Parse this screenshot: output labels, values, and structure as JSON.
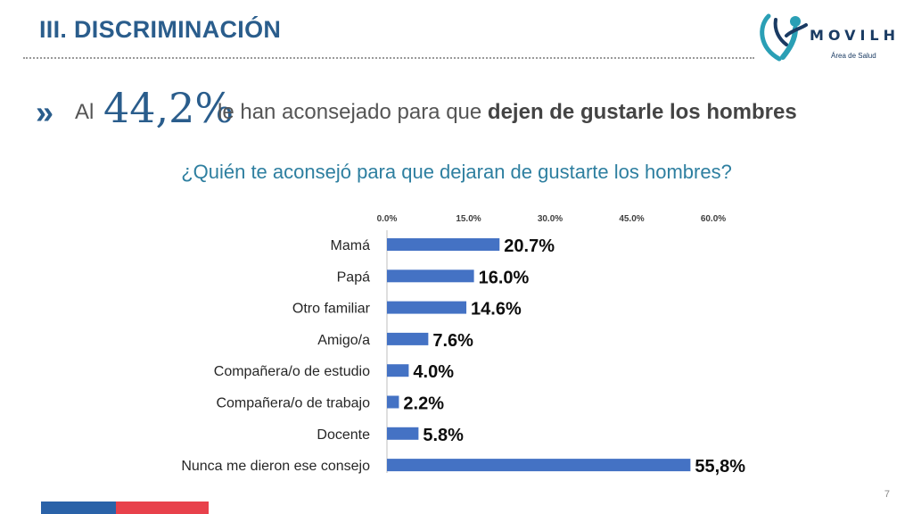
{
  "section_title": "III. DISCRIMINACIÓN",
  "brand": {
    "name": "MOVILH",
    "subtitle": "Área de Salud"
  },
  "headline": {
    "prefix": "Al",
    "percent": "44,2%",
    "middle": "le han aconsejado para que",
    "bold": "dejen de gustarle los hombres"
  },
  "page_number": "7",
  "colors": {
    "bar": "#4472c4",
    "accent": "#2a5d8c",
    "question": "#2e7fa0"
  },
  "chart_data": {
    "type": "bar",
    "orientation": "horizontal",
    "title": "¿Quién te aconsejó para que dejaran de gustarte los hombres?",
    "categories": [
      "Mamá",
      "Papá",
      "Otro familiar",
      "Amigo/a",
      "Compañera/o de estudio",
      "Compañera/o de trabajo",
      "Docente",
      "Nunca me dieron ese consejo"
    ],
    "values": [
      20.7,
      16.0,
      14.6,
      7.6,
      4.0,
      2.2,
      5.8,
      55.8
    ],
    "value_labels": [
      "20.7%",
      "16.0%",
      "14.6%",
      "7.6%",
      "4.0%",
      "2.2%",
      "5.8%",
      "55,8%"
    ],
    "xlim": [
      0,
      60
    ],
    "ticks": [
      0,
      15,
      30,
      45,
      60
    ],
    "tick_labels": [
      "0.0%",
      "15.0%",
      "30.0%",
      "45.0%",
      "60.0%"
    ],
    "axis_position": "top",
    "grid": false,
    "legend": "none"
  }
}
